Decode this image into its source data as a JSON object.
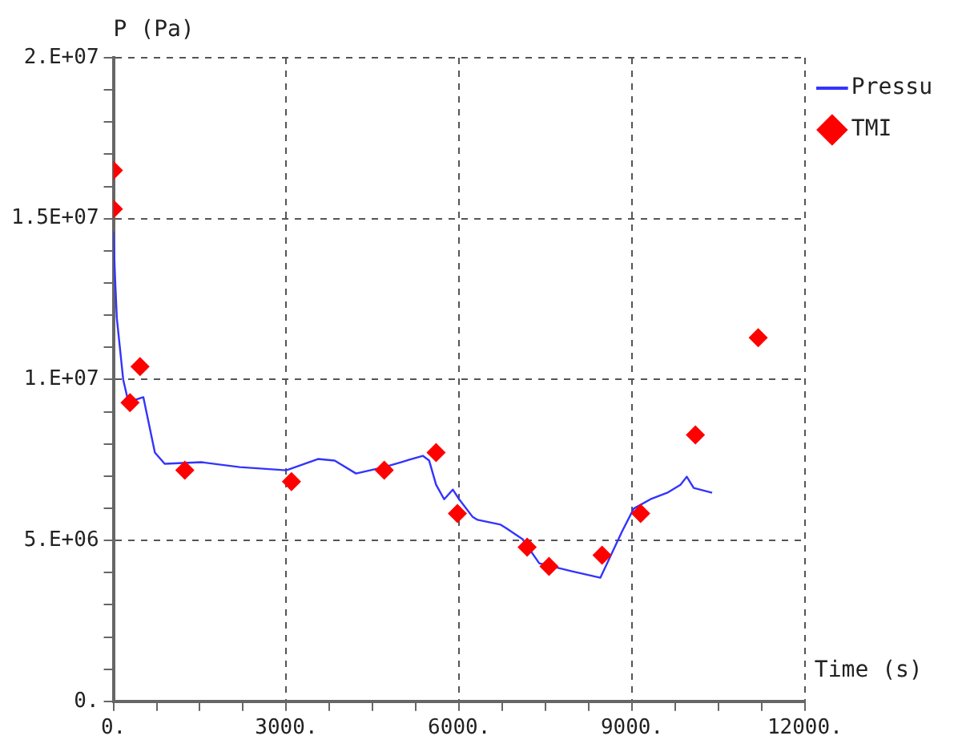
{
  "chart_data": {
    "type": "line",
    "xlabel": "Time (s)",
    "ylabel": "P (Pa)",
    "xlim": [
      0,
      12000
    ],
    "ylim": [
      0,
      20000000
    ],
    "xticks": [
      {
        "value": 0,
        "label": "0."
      },
      {
        "value": 750,
        "label": null
      },
      {
        "value": 1500,
        "label": null
      },
      {
        "value": 2250,
        "label": null
      },
      {
        "value": 3000,
        "label": "3000."
      },
      {
        "value": 3750,
        "label": null
      },
      {
        "value": 4500,
        "label": null
      },
      {
        "value": 5250,
        "label": null
      },
      {
        "value": 6000,
        "label": "6000."
      },
      {
        "value": 6750,
        "label": null
      },
      {
        "value": 7500,
        "label": null
      },
      {
        "value": 8250,
        "label": null
      },
      {
        "value": 9000,
        "label": "9000."
      },
      {
        "value": 9750,
        "label": null
      },
      {
        "value": 10500,
        "label": null
      },
      {
        "value": 11250,
        "label": null
      },
      {
        "value": 12000,
        "label": "12000."
      }
    ],
    "yticks": [
      {
        "value": 0,
        "label": "0."
      },
      {
        "value": 1000000,
        "label": null
      },
      {
        "value": 2000000,
        "label": null
      },
      {
        "value": 3000000,
        "label": null
      },
      {
        "value": 4000000,
        "label": null
      },
      {
        "value": 5000000,
        "label": "5.E+06"
      },
      {
        "value": 6000000,
        "label": null
      },
      {
        "value": 7000000,
        "label": null
      },
      {
        "value": 8000000,
        "label": null
      },
      {
        "value": 9000000,
        "label": null
      },
      {
        "value": 10000000,
        "label": "1.E+07"
      },
      {
        "value": 11000000,
        "label": null
      },
      {
        "value": 12000000,
        "label": null
      },
      {
        "value": 13000000,
        "label": null
      },
      {
        "value": 14000000,
        "label": null
      },
      {
        "value": 15000000,
        "label": "1.5E+07"
      },
      {
        "value": 16000000,
        "label": null
      },
      {
        "value": 17000000,
        "label": null
      },
      {
        "value": 18000000,
        "label": null
      },
      {
        "value": 19000000,
        "label": null
      },
      {
        "value": 20000000,
        "label": "2.E+07"
      }
    ],
    "grid": true,
    "legend": "top right",
    "series": [
      {
        "name": "Pressu",
        "color": "#3333ff",
        "marker": "none",
        "line_style": "solid",
        "x": [
          0,
          30,
          60,
          170,
          260,
          520,
          720,
          890,
          1530,
          2190,
          3000,
          3550,
          3840,
          4210,
          4700,
          4990,
          5370,
          5480,
          5600,
          5740,
          5890,
          6000,
          6230,
          6320,
          6720,
          6810,
          7100,
          7390,
          7960,
          8450,
          8830,
          9030,
          9320,
          9610,
          9840,
          9950,
          10070,
          10390
        ],
        "values": [
          14600000,
          13100000,
          11900000,
          10000000,
          9300000,
          9450000,
          7730000,
          7380000,
          7430000,
          7280000,
          7180000,
          7530000,
          7480000,
          7080000,
          7280000,
          7430000,
          7630000,
          7480000,
          6730000,
          6280000,
          6580000,
          6280000,
          5740000,
          5640000,
          5490000,
          5390000,
          5040000,
          4290000,
          4040000,
          3840000,
          5290000,
          5990000,
          6280000,
          6480000,
          6730000,
          6980000,
          6630000,
          6480000
        ]
      },
      {
        "name": "TMI",
        "type": "scatter",
        "color": "#ff0000",
        "marker": "diamond",
        "x": [
          0,
          0,
          462,
          288,
          1240,
          3090,
          4700,
          5600,
          5970,
          7180,
          7560,
          8480,
          9150,
          10100,
          11190
        ],
        "values": [
          16500000,
          15300000,
          10400000,
          9280000,
          7180000,
          6830000,
          7180000,
          7730000,
          5840000,
          4790000,
          4190000,
          4540000,
          5840000,
          8280000,
          11300000
        ]
      }
    ]
  }
}
